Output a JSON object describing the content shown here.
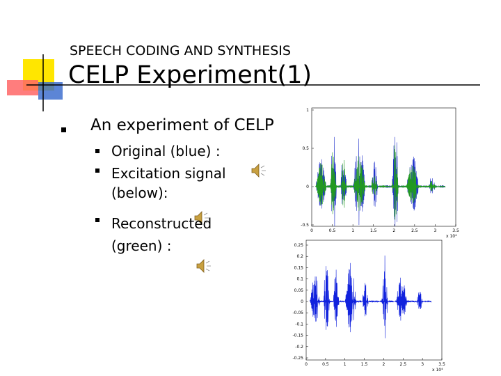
{
  "header": {
    "subtitle": "SPEECH CODING AND SYNTHESIS",
    "title": "CELP Experiment(1)"
  },
  "bullets": {
    "main": "An experiment of CELP",
    "items": [
      "Original (blue) :",
      "Excitation signal (below):",
      "Reconstructed (green) :"
    ]
  },
  "figures": [
    {
      "yticks": [
        1,
        0.5,
        0,
        -0.5
      ],
      "xticks": [
        0,
        0.5,
        1,
        1.5,
        2,
        2.5,
        3,
        3.5
      ],
      "exponent": "x 10⁴"
    },
    {
      "yticks": [
        0.25,
        0.2,
        0.15,
        0.1,
        0.05,
        0,
        -0.05,
        -0.1,
        -0.15,
        -0.2,
        -0.25
      ],
      "xticks": [
        0,
        0.5,
        1,
        1.5,
        2,
        2.5,
        3,
        3.5
      ],
      "exponent": "x 10⁴"
    }
  ]
}
